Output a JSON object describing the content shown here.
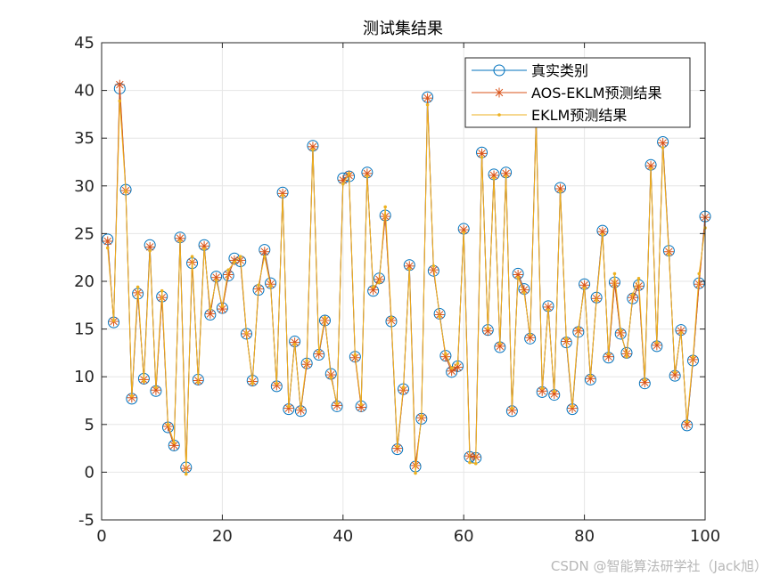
{
  "chart_data": {
    "type": "line",
    "title": "测试集结果",
    "xlabel": "",
    "ylabel": "",
    "xlim": [
      0,
      100
    ],
    "ylim": [
      -5,
      45
    ],
    "xticks": [
      0,
      20,
      40,
      60,
      80,
      100
    ],
    "yticks": [
      -5,
      0,
      5,
      10,
      15,
      20,
      25,
      30,
      35,
      40,
      45
    ],
    "grid": true,
    "legend_position": "top-right",
    "x": [
      1,
      2,
      3,
      4,
      5,
      6,
      7,
      8,
      9,
      10,
      11,
      12,
      13,
      14,
      15,
      16,
      17,
      18,
      19,
      20,
      21,
      22,
      23,
      24,
      25,
      26,
      27,
      28,
      29,
      30,
      31,
      32,
      33,
      34,
      35,
      36,
      37,
      38,
      39,
      40,
      41,
      42,
      43,
      44,
      45,
      46,
      47,
      48,
      49,
      50,
      51,
      52,
      53,
      54,
      55,
      56,
      57,
      58,
      59,
      60,
      61,
      62,
      63,
      64,
      65,
      66,
      67,
      68,
      69,
      70,
      71,
      72,
      73,
      74,
      75,
      76,
      77,
      78,
      79,
      80,
      81,
      82,
      83,
      84,
      85,
      86,
      87,
      88,
      89,
      90,
      91,
      92,
      93,
      94,
      95,
      96,
      97,
      98,
      99,
      100
    ],
    "series": [
      {
        "name": "真实类别",
        "color": "#0072BD",
        "marker": "circle",
        "values": [
          24.4,
          15.7,
          40.2,
          29.6,
          7.7,
          18.7,
          9.8,
          23.8,
          8.5,
          18.4,
          4.7,
          2.8,
          24.6,
          0.5,
          21.9,
          9.7,
          23.8,
          16.5,
          20.5,
          17.2,
          20.6,
          22.4,
          22.1,
          14.5,
          9.6,
          19.1,
          23.3,
          19.8,
          9.0,
          29.3,
          6.6,
          13.7,
          6.4,
          11.4,
          34.2,
          12.3,
          15.9,
          10.3,
          6.9,
          30.8,
          31.0,
          12.1,
          6.9,
          31.4,
          19.0,
          20.3,
          26.9,
          15.8,
          2.4,
          8.7,
          21.7,
          0.6,
          5.6,
          39.3,
          21.1,
          16.6,
          12.2,
          10.5,
          11.1,
          25.5,
          1.6,
          1.5,
          33.5,
          14.9,
          31.2,
          13.1,
          31.4,
          6.4,
          20.8,
          19.2,
          14.0,
          37.1,
          8.4,
          17.4,
          8.1,
          29.8,
          13.6,
          6.6,
          14.7,
          19.7,
          9.7,
          18.3,
          25.3,
          12.0,
          19.9,
          14.5,
          12.5,
          18.2,
          19.6,
          9.3,
          32.2,
          13.2,
          34.6,
          23.2,
          10.1,
          14.9,
          4.9,
          11.7,
          19.8,
          26.8
        ]
      },
      {
        "name": "AOS-EKLM预测结果",
        "color": "#D95319",
        "marker": "asterisk",
        "values": [
          24.2,
          15.8,
          40.6,
          29.5,
          7.8,
          18.8,
          9.7,
          23.6,
          8.6,
          18.3,
          4.8,
          2.8,
          24.5,
          0.4,
          22.0,
          9.6,
          23.7,
          16.6,
          20.4,
          17.1,
          20.7,
          22.2,
          22.2,
          14.5,
          9.5,
          19.2,
          23.1,
          19.7,
          9.1,
          29.2,
          6.7,
          13.6,
          6.5,
          11.3,
          34.1,
          12.4,
          15.9,
          10.2,
          7.0,
          30.6,
          31.1,
          12.0,
          6.8,
          31.3,
          19.1,
          20.2,
          26.8,
          15.9,
          2.5,
          8.6,
          21.6,
          0.7,
          5.7,
          39.2,
          21.2,
          16.5,
          12.1,
          10.6,
          11.0,
          25.4,
          1.7,
          1.6,
          33.4,
          14.8,
          31.1,
          13.2,
          31.3,
          6.5,
          20.7,
          19.1,
          14.1,
          37.0,
          8.5,
          17.3,
          8.2,
          29.7,
          13.7,
          6.7,
          14.8,
          19.6,
          9.8,
          18.2,
          25.2,
          12.1,
          19.8,
          14.6,
          12.4,
          18.3,
          19.5,
          9.4,
          32.1,
          13.3,
          34.5,
          23.1,
          10.2,
          14.8,
          5.0,
          11.8,
          19.7,
          26.7
        ]
      },
      {
        "name": "EKLM预测结果",
        "color": "#EDB120",
        "marker": "dot",
        "values": [
          23.5,
          15.9,
          38.9,
          29.4,
          8.0,
          19.4,
          9.5,
          23.2,
          8.9,
          19.0,
          5.0,
          3.1,
          24.2,
          -0.2,
          22.6,
          9.4,
          23.4,
          17.1,
          20.1,
          17.4,
          21.2,
          22.0,
          22.6,
          14.6,
          9.3,
          19.6,
          22.6,
          19.5,
          9.3,
          29.0,
          6.9,
          13.4,
          6.7,
          11.7,
          33.8,
          12.6,
          16.2,
          9.9,
          7.2,
          30.2,
          31.3,
          12.3,
          7.1,
          31.0,
          19.4,
          19.9,
          27.8,
          16.2,
          2.7,
          8.9,
          21.3,
          -0.1,
          5.9,
          38.5,
          21.6,
          16.3,
          12.4,
          10.9,
          11.4,
          25.1,
          1.0,
          0.9,
          33.0,
          15.1,
          30.8,
          13.5,
          31.0,
          6.7,
          20.4,
          18.8,
          14.4,
          36.3,
          8.8,
          17.0,
          8.5,
          29.4,
          14.0,
          6.9,
          15.1,
          19.3,
          10.1,
          18.0,
          24.9,
          12.4,
          20.8,
          14.9,
          12.1,
          18.6,
          20.3,
          9.7,
          31.8,
          13.6,
          34.0,
          22.8,
          10.5,
          14.6,
          5.3,
          12.1,
          20.8,
          25.6
        ]
      }
    ]
  },
  "watermark": "CSDN @智能算法研学社（Jack旭）"
}
